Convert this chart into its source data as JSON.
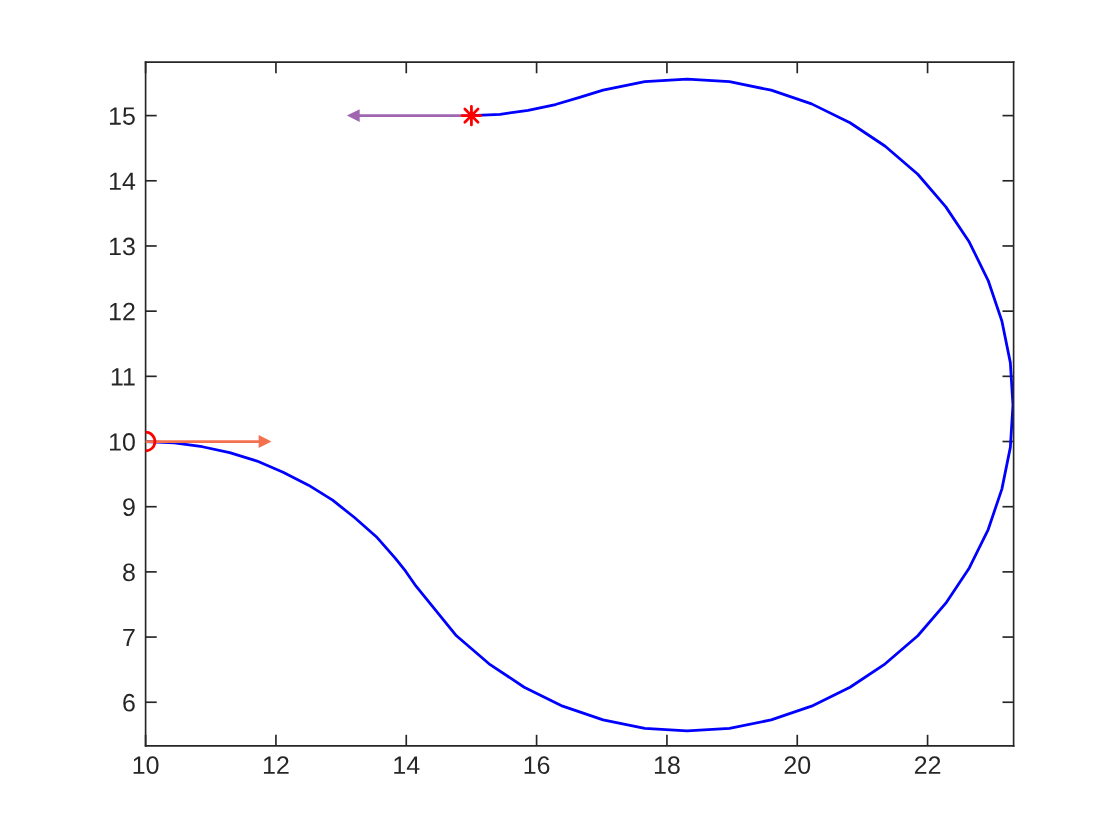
{
  "chart_data": {
    "type": "line",
    "xlim": [
      10,
      23.32
    ],
    "ylim": [
      5.33,
      15.82
    ],
    "xticks": [
      10,
      12,
      14,
      16,
      18,
      20,
      22
    ],
    "yticks": [
      6,
      7,
      8,
      9,
      10,
      11,
      12,
      13,
      14,
      15
    ],
    "grid": false,
    "legend": false,
    "series": [
      {
        "color": "#0000ff",
        "marker": "none",
        "x": [
          10,
          10.44,
          10.87,
          11.29,
          11.71,
          12.11,
          12.5,
          12.87,
          13.21,
          13.54,
          13.83,
          13.99,
          14.15,
          14.77,
          15.27,
          15.81,
          16.4,
          17.02,
          17.66,
          18.31,
          18.96,
          19.6,
          20.22,
          20.81,
          21.35,
          21.85,
          22.28,
          22.64,
          22.93,
          23.14,
          23.27,
          23.31,
          23.27,
          23.14,
          22.93,
          22.64,
          22.28,
          21.85,
          21.35,
          20.81,
          20.22,
          19.6,
          18.96,
          18.31,
          17.66,
          17.02,
          16.66,
          16.29,
          15.87,
          15.44,
          15
        ],
        "values": [
          10,
          9.98,
          9.92,
          9.83,
          9.7,
          9.53,
          9.33,
          9.1,
          8.83,
          8.54,
          8.21,
          8.01,
          7.78,
          7.02,
          6.59,
          6.23,
          5.94,
          5.73,
          5.6,
          5.56,
          5.6,
          5.73,
          5.94,
          6.23,
          6.59,
          7.02,
          7.52,
          8.06,
          8.65,
          9.27,
          9.91,
          10.56,
          11.21,
          11.85,
          12.47,
          13.06,
          13.6,
          14.1,
          14.53,
          14.89,
          15.18,
          15.39,
          15.52,
          15.56,
          15.52,
          15.39,
          15.28,
          15.17,
          15.08,
          15.02,
          15
        ]
      },
      {
        "color": "#f4714f",
        "marker": "triangle",
        "x": [
          10,
          11.82
        ],
        "values": [
          10,
          10
        ]
      },
      {
        "color": "#a066b0",
        "marker": "triangle",
        "x": [
          15,
          13.2
        ],
        "values": [
          15,
          15
        ]
      },
      {
        "type": "scatter",
        "color": "#ff0000",
        "marker": "circle",
        "x": [
          10
        ],
        "values": [
          10
        ]
      },
      {
        "type": "scatter",
        "color": "#ff0000",
        "marker": "star",
        "x": [
          15
        ],
        "values": [
          15
        ]
      }
    ]
  }
}
